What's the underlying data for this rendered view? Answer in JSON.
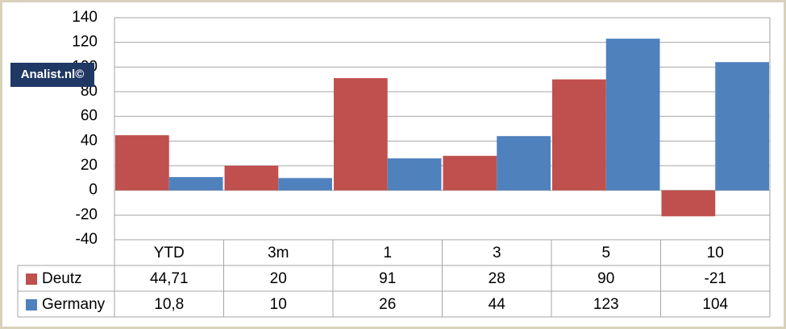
{
  "chart_data": {
    "type": "bar",
    "watermark": "Analist.nl©",
    "categories": [
      "YTD",
      "3m",
      "1",
      "3",
      "5",
      "10"
    ],
    "series": [
      {
        "name": "Deutz",
        "color": "#c0504d",
        "values": [
          44.71,
          20,
          91,
          28,
          90,
          -21
        ],
        "value_labels": [
          "44,71",
          "20",
          "91",
          "28",
          "90",
          "-21"
        ]
      },
      {
        "name": "Germany",
        "color": "#4f81bd",
        "values": [
          10.8,
          10,
          26,
          44,
          123,
          104
        ],
        "value_labels": [
          "10,8",
          "10",
          "26",
          "44",
          "123",
          "104"
        ]
      }
    ],
    "ylim": [
      -40,
      140
    ],
    "yticks": [
      -40,
      -20,
      0,
      20,
      40,
      60,
      80,
      100,
      120,
      140
    ],
    "grid": true
  }
}
